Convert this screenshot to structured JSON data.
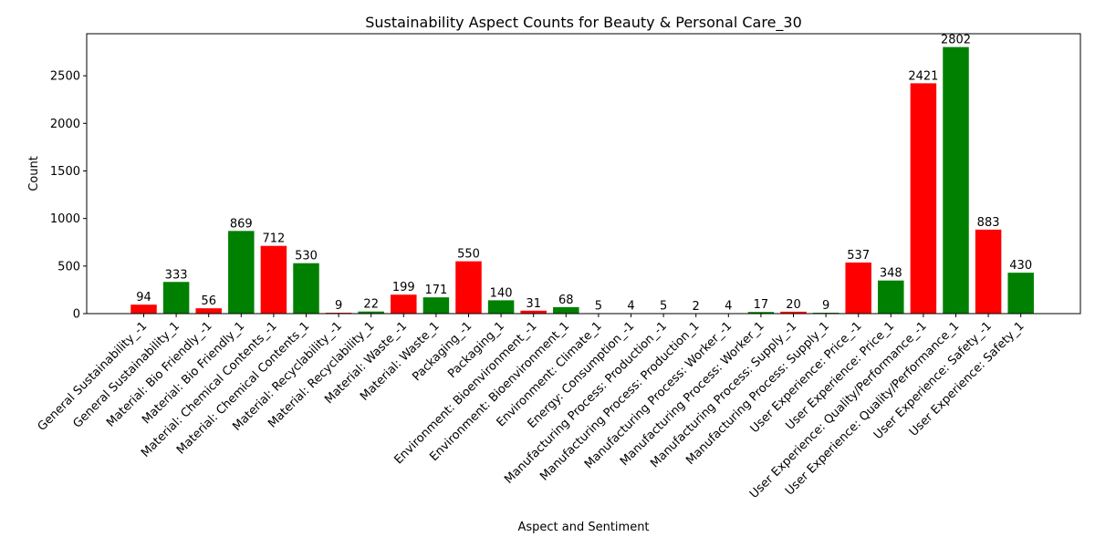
{
  "chart_data": {
    "type": "bar",
    "title": "Sustainability Aspect Counts for Beauty & Personal Care_30",
    "xlabel": "Aspect and Sentiment",
    "ylabel": "Count",
    "ylim": [
      0,
      2942
    ],
    "yticks": [
      0,
      500,
      1000,
      1500,
      2000,
      2500
    ],
    "grid": false,
    "colors": {
      "negative": "#ff0000",
      "positive": "#008000"
    },
    "categories": [
      "General Sustainability_-1",
      "General Sustainability_1",
      "Material: Bio Friendly_-1",
      "Material: Bio Friendly_1",
      "Material: Chemical Contents_-1",
      "Material: Chemical Contents_1",
      "Material: Recyclability_-1",
      "Material: Recyclability_1",
      "Material: Waste_-1",
      "Material: Waste_1",
      "Packaging_-1",
      "Packaging_1",
      "Environment: Bioenvironment_-1",
      "Environment: Bioenvironment_1",
      "Environment: Climate_1",
      "Energy: Consumption_-1",
      "Manufacturing Process: Production_-1",
      "Manufacturing Process: Production_1",
      "Manufacturing Process: Worker_-1",
      "Manufacturing Process: Worker_1",
      "Manufacturing Process: Supply_-1",
      "Manufacturing Process: Supply_1",
      "User Experience: Price_-1",
      "User Experience: Price_1",
      "User Experience: Quality/Performance_-1",
      "User Experience: Quality/Performance_1",
      "User Experience: Safety_-1",
      "User Experience: Safety_1"
    ],
    "values": [
      94,
      333,
      56,
      869,
      712,
      530,
      9,
      22,
      199,
      171,
      550,
      140,
      31,
      68,
      5,
      4,
      5,
      2,
      4,
      17,
      20,
      9,
      537,
      348,
      2421,
      2802,
      883,
      430
    ],
    "bar_colors": [
      "negative",
      "positive",
      "negative",
      "positive",
      "negative",
      "positive",
      "negative",
      "positive",
      "negative",
      "positive",
      "negative",
      "positive",
      "negative",
      "positive",
      "positive",
      "negative",
      "negative",
      "positive",
      "negative",
      "positive",
      "negative",
      "positive",
      "negative",
      "positive",
      "negative",
      "positive",
      "negative",
      "positive"
    ]
  }
}
